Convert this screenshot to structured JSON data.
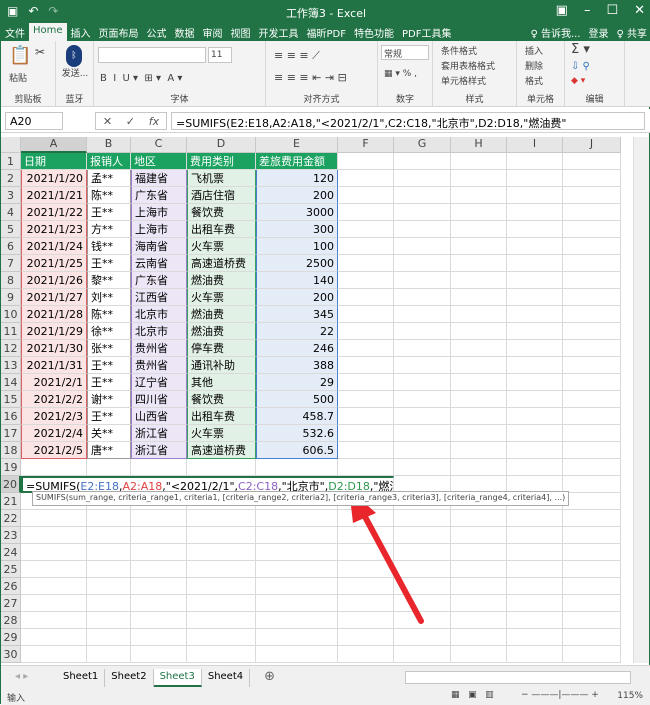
{
  "title": "工作簿3 - Excel",
  "tabs": [
    "文件",
    "Home",
    "插入",
    "页面布局",
    "公式",
    "数据",
    "审阅",
    "视图",
    "开发工具",
    "福昕PDF",
    "特色功能",
    "PDF工具集",
    "♀ 告诉我...",
    "登录",
    "♀ 共享"
  ],
  "ribbon": {
    "paste": "粘贴",
    "bluetooth": "发送...",
    "groups": [
      "剪贴板",
      "蓝牙",
      "字体",
      "对齐方式",
      "数字",
      "样式",
      "单元格",
      "编辑"
    ],
    "font_size": "11",
    "number_format": "常规",
    "cond_format": "条件格式",
    "table_format": "套用表格格式",
    "cell_style": "单元格样式",
    "insert": "插入",
    "delete": "删除",
    "format": "格式"
  },
  "namebox": "A20",
  "formula": "=SUMIFS(E2:E18,A2:A18,\"<2021/2/1\",C2:C18,\"北京市\",D2:D18,\"燃油费\"",
  "columns": [
    "A",
    "B",
    "C",
    "D",
    "E",
    "F",
    "G",
    "H",
    "I",
    "J"
  ],
  "headers": [
    "日期",
    "报销人",
    "地区",
    "费用类别",
    "差旅费用金额"
  ],
  "rows": [
    [
      "2021/1/20",
      "孟**",
      "福建省",
      "飞机票",
      "120"
    ],
    [
      "2021/1/21",
      "陈**",
      "广东省",
      "酒店住宿",
      "200"
    ],
    [
      "2021/1/22",
      "王**",
      "上海市",
      "餐饮费",
      "3000"
    ],
    [
      "2021/1/23",
      "方**",
      "上海市",
      "出租车费",
      "300"
    ],
    [
      "2021/1/24",
      "钱**",
      "海南省",
      "火车票",
      "100"
    ],
    [
      "2021/1/25",
      "王**",
      "云南省",
      "高速道桥费",
      "2500"
    ],
    [
      "2021/1/26",
      "黎**",
      "广东省",
      "燃油费",
      "140"
    ],
    [
      "2021/1/27",
      "刘**",
      "江西省",
      "火车票",
      "200"
    ],
    [
      "2021/1/28",
      "陈**",
      "北京市",
      "燃油费",
      "345"
    ],
    [
      "2021/1/29",
      "徐**",
      "北京市",
      "燃油费",
      "22"
    ],
    [
      "2021/1/30",
      "张**",
      "贵州省",
      "停车费",
      "246"
    ],
    [
      "2021/1/31",
      "王**",
      "贵州省",
      "通讯补助",
      "388"
    ],
    [
      "2021/2/1",
      "王**",
      "辽宁省",
      "其他",
      "29"
    ],
    [
      "2021/2/2",
      "谢**",
      "四川省",
      "餐饮费",
      "500"
    ],
    [
      "2021/2/3",
      "王**",
      "山西省",
      "出租车费",
      "458.7"
    ],
    [
      "2021/2/4",
      "关**",
      "浙江省",
      "火车票",
      "532.6"
    ],
    [
      "2021/2/5",
      "唐**",
      "浙江省",
      "高速道桥费",
      "606.5"
    ]
  ],
  "edit_parts": [
    [
      "=SUMIFS(",
      "#000"
    ],
    [
      "E2:E18",
      "#4472c4"
    ],
    [
      ",",
      "#000"
    ],
    [
      "A2:A18",
      "#e04040"
    ],
    [
      ",\"<2021/2/1\",",
      "#000"
    ],
    [
      "C2:C18",
      "#8e5fc0"
    ],
    [
      ",\"北京市\",",
      "#000"
    ],
    [
      "D2:D18",
      "#2e9a4e"
    ],
    [
      ",\"燃油费\"",
      "#000"
    ]
  ],
  "tooltip": "SUMIFS(sum_range, criteria_range1, criteria1, [criteria_range2, criteria2], [criteria_range3, criteria3], [criteria_range4, criteria4], ...)",
  "sheets": [
    "Sheet1",
    "Sheet2",
    "Sheet3",
    "Sheet4"
  ],
  "active_sheet": "Sheet3",
  "status": {
    "mode": "输入",
    "zoom": "115%"
  },
  "colors": {
    "accent": "#217346",
    "header_fill": "#1ba260",
    "col_a": "#fbe4e4",
    "col_c": "#ede6f6",
    "col_d": "#e2f1e6",
    "col_e": "#e4ecf8",
    "arrow": "#e8262b"
  }
}
